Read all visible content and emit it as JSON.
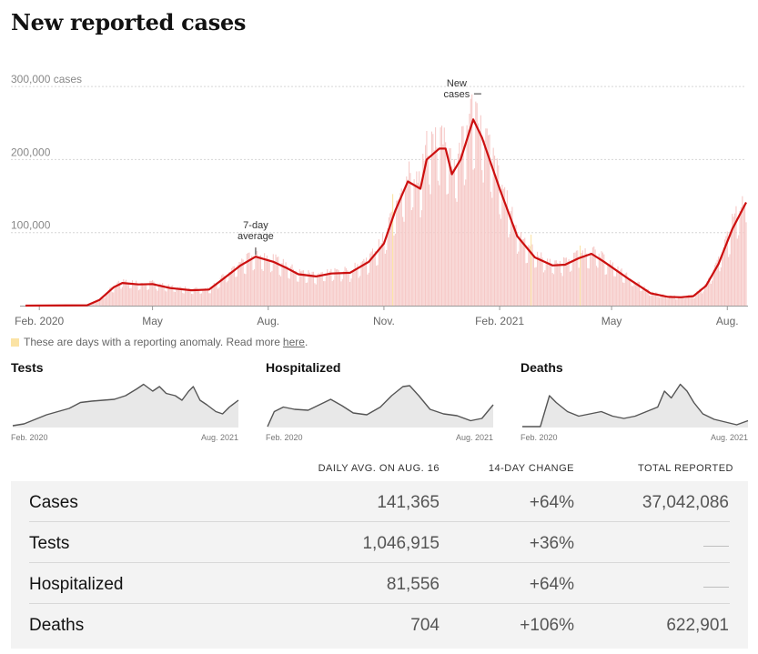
{
  "header": {
    "title": "New reported cases"
  },
  "chart_data": {
    "type": "bar",
    "title": "New reported cases",
    "y_unit": "cases",
    "yticks": [
      "300,000 cases",
      "200,000",
      "100,000"
    ],
    "ytick_values": [
      300000,
      200000,
      100000
    ],
    "ylim": [
      0,
      340000
    ],
    "xticks": [
      "Feb. 2020",
      "May",
      "Aug.",
      "Nov.",
      "Feb. 2021",
      "May",
      "Aug."
    ],
    "xtick_dates": [
      "2020-02-01",
      "2020-05-01",
      "2020-08-01",
      "2020-11-01",
      "2021-02-01",
      "2021-05-01",
      "2021-08-01"
    ],
    "date_range": [
      "2020-01-21",
      "2021-08-16"
    ],
    "series": [
      {
        "name": "New cases",
        "kind": "daily bars",
        "color": "#f6c9c7"
      },
      {
        "name": "7-day average",
        "kind": "line",
        "color": "#cc0f0f"
      }
    ],
    "seven_day_avg_points": [
      [
        "2020-01-21",
        0
      ],
      [
        "2020-03-10",
        500
      ],
      [
        "2020-03-20",
        8000
      ],
      [
        "2020-03-31",
        25000
      ],
      [
        "2020-04-07",
        31000
      ],
      [
        "2020-04-20",
        29000
      ],
      [
        "2020-05-01",
        29500
      ],
      [
        "2020-05-15",
        24000
      ],
      [
        "2020-06-01",
        21000
      ],
      [
        "2020-06-15",
        22000
      ],
      [
        "2020-06-25",
        35000
      ],
      [
        "2020-07-10",
        55000
      ],
      [
        "2020-07-22",
        67000
      ],
      [
        "2020-08-05",
        60000
      ],
      [
        "2020-08-15",
        52000
      ],
      [
        "2020-08-25",
        43000
      ],
      [
        "2020-09-08",
        40000
      ],
      [
        "2020-09-20",
        44000
      ],
      [
        "2020-10-05",
        45000
      ],
      [
        "2020-10-20",
        60000
      ],
      [
        "2020-11-01",
        85000
      ],
      [
        "2020-11-10",
        130000
      ],
      [
        "2020-11-20",
        170000
      ],
      [
        "2020-11-30",
        160000
      ],
      [
        "2020-12-05",
        200000
      ],
      [
        "2020-12-15",
        215000
      ],
      [
        "2020-12-20",
        215000
      ],
      [
        "2020-12-25",
        180000
      ],
      [
        "2021-01-01",
        200000
      ],
      [
        "2021-01-11",
        255000
      ],
      [
        "2021-01-18",
        230000
      ],
      [
        "2021-02-01",
        160000
      ],
      [
        "2021-02-15",
        95000
      ],
      [
        "2021-03-01",
        66000
      ],
      [
        "2021-03-15",
        55000
      ],
      [
        "2021-03-25",
        56000
      ],
      [
        "2021-04-05",
        65000
      ],
      [
        "2021-04-15",
        71000
      ],
      [
        "2021-04-25",
        60000
      ],
      [
        "2021-05-15",
        36000
      ],
      [
        "2021-06-01",
        17000
      ],
      [
        "2021-06-15",
        12000
      ],
      [
        "2021-06-25",
        11500
      ],
      [
        "2021-07-05",
        13000
      ],
      [
        "2021-07-15",
        27000
      ],
      [
        "2021-07-25",
        57000
      ],
      [
        "2021-08-05",
        105000
      ],
      [
        "2021-08-16",
        141365
      ]
    ],
    "annotations": [
      {
        "text": [
          "7-day",
          "average"
        ],
        "date": "2020-07-22",
        "value": 67000
      },
      {
        "text": [
          "New",
          "cases"
        ],
        "date": "2021-01-08",
        "value": 300000
      }
    ],
    "anomaly_note": {
      "text": "These are days with a reporting anomaly. Read more",
      "link": "here",
      "end": ".",
      "color": "#fbe3a4"
    },
    "mini_charts": [
      {
        "title": "Tests",
        "type": "area",
        "xticks": [
          "Feb. 2020",
          "Aug. 2021"
        ],
        "points": [
          [
            0,
            0.04
          ],
          [
            0.05,
            0.08
          ],
          [
            0.1,
            0.18
          ],
          [
            0.15,
            0.28
          ],
          [
            0.2,
            0.35
          ],
          [
            0.25,
            0.42
          ],
          [
            0.3,
            0.55
          ],
          [
            0.35,
            0.58
          ],
          [
            0.4,
            0.6
          ],
          [
            0.45,
            0.62
          ],
          [
            0.5,
            0.7
          ],
          [
            0.55,
            0.85
          ],
          [
            0.58,
            0.95
          ],
          [
            0.62,
            0.8
          ],
          [
            0.65,
            0.9
          ],
          [
            0.68,
            0.75
          ],
          [
            0.72,
            0.7
          ],
          [
            0.75,
            0.6
          ],
          [
            0.78,
            0.8
          ],
          [
            0.8,
            0.9
          ],
          [
            0.83,
            0.6
          ],
          [
            0.86,
            0.5
          ],
          [
            0.9,
            0.35
          ],
          [
            0.93,
            0.3
          ],
          [
            0.96,
            0.45
          ],
          [
            1,
            0.6
          ]
        ]
      },
      {
        "title": "Hospitalized",
        "type": "area",
        "xticks": [
          "Feb. 2020",
          "Aug. 2021"
        ],
        "points": [
          [
            0,
            0.02
          ],
          [
            0.03,
            0.35
          ],
          [
            0.07,
            0.45
          ],
          [
            0.12,
            0.4
          ],
          [
            0.18,
            0.38
          ],
          [
            0.23,
            0.5
          ],
          [
            0.28,
            0.62
          ],
          [
            0.33,
            0.48
          ],
          [
            0.38,
            0.32
          ],
          [
            0.44,
            0.28
          ],
          [
            0.5,
            0.45
          ],
          [
            0.55,
            0.7
          ],
          [
            0.6,
            0.9
          ],
          [
            0.63,
            0.92
          ],
          [
            0.67,
            0.7
          ],
          [
            0.72,
            0.4
          ],
          [
            0.78,
            0.3
          ],
          [
            0.84,
            0.26
          ],
          [
            0.9,
            0.15
          ],
          [
            0.95,
            0.2
          ],
          [
            1,
            0.5
          ]
        ]
      },
      {
        "title": "Deaths",
        "type": "area",
        "xticks": [
          "Feb. 2020",
          "Aug. 2021"
        ],
        "points": [
          [
            0,
            0.02
          ],
          [
            0.08,
            0.02
          ],
          [
            0.12,
            0.7
          ],
          [
            0.15,
            0.55
          ],
          [
            0.2,
            0.35
          ],
          [
            0.25,
            0.25
          ],
          [
            0.3,
            0.3
          ],
          [
            0.35,
            0.35
          ],
          [
            0.4,
            0.25
          ],
          [
            0.45,
            0.2
          ],
          [
            0.5,
            0.25
          ],
          [
            0.55,
            0.35
          ],
          [
            0.6,
            0.45
          ],
          [
            0.63,
            0.8
          ],
          [
            0.66,
            0.65
          ],
          [
            0.7,
            0.95
          ],
          [
            0.73,
            0.8
          ],
          [
            0.76,
            0.55
          ],
          [
            0.8,
            0.3
          ],
          [
            0.85,
            0.18
          ],
          [
            0.9,
            0.12
          ],
          [
            0.95,
            0.06
          ],
          [
            1,
            0.15
          ]
        ]
      }
    ]
  },
  "table": {
    "headers": {
      "daily": "DAILY AVG. ON AUG. 16",
      "change": "14-DAY CHANGE",
      "total": "TOTAL REPORTED"
    },
    "rows": [
      {
        "label": "Cases",
        "daily": "141,365",
        "change": "+64%",
        "total": "37,042,086"
      },
      {
        "label": "Tests",
        "daily": "1,046,915",
        "change": "+36%",
        "total": "——"
      },
      {
        "label": "Hospitalized",
        "daily": "81,556",
        "change": "+64%",
        "total": "——"
      },
      {
        "label": "Deaths",
        "daily": "704",
        "change": "+106%",
        "total": "622,901"
      }
    ]
  },
  "colors": {
    "line": "#cc0f0f",
    "bars": "#f6c9c7",
    "anomaly": "#fbe3a4",
    "mini_line": "#555555",
    "mini_fill": "#e8e8e8"
  }
}
